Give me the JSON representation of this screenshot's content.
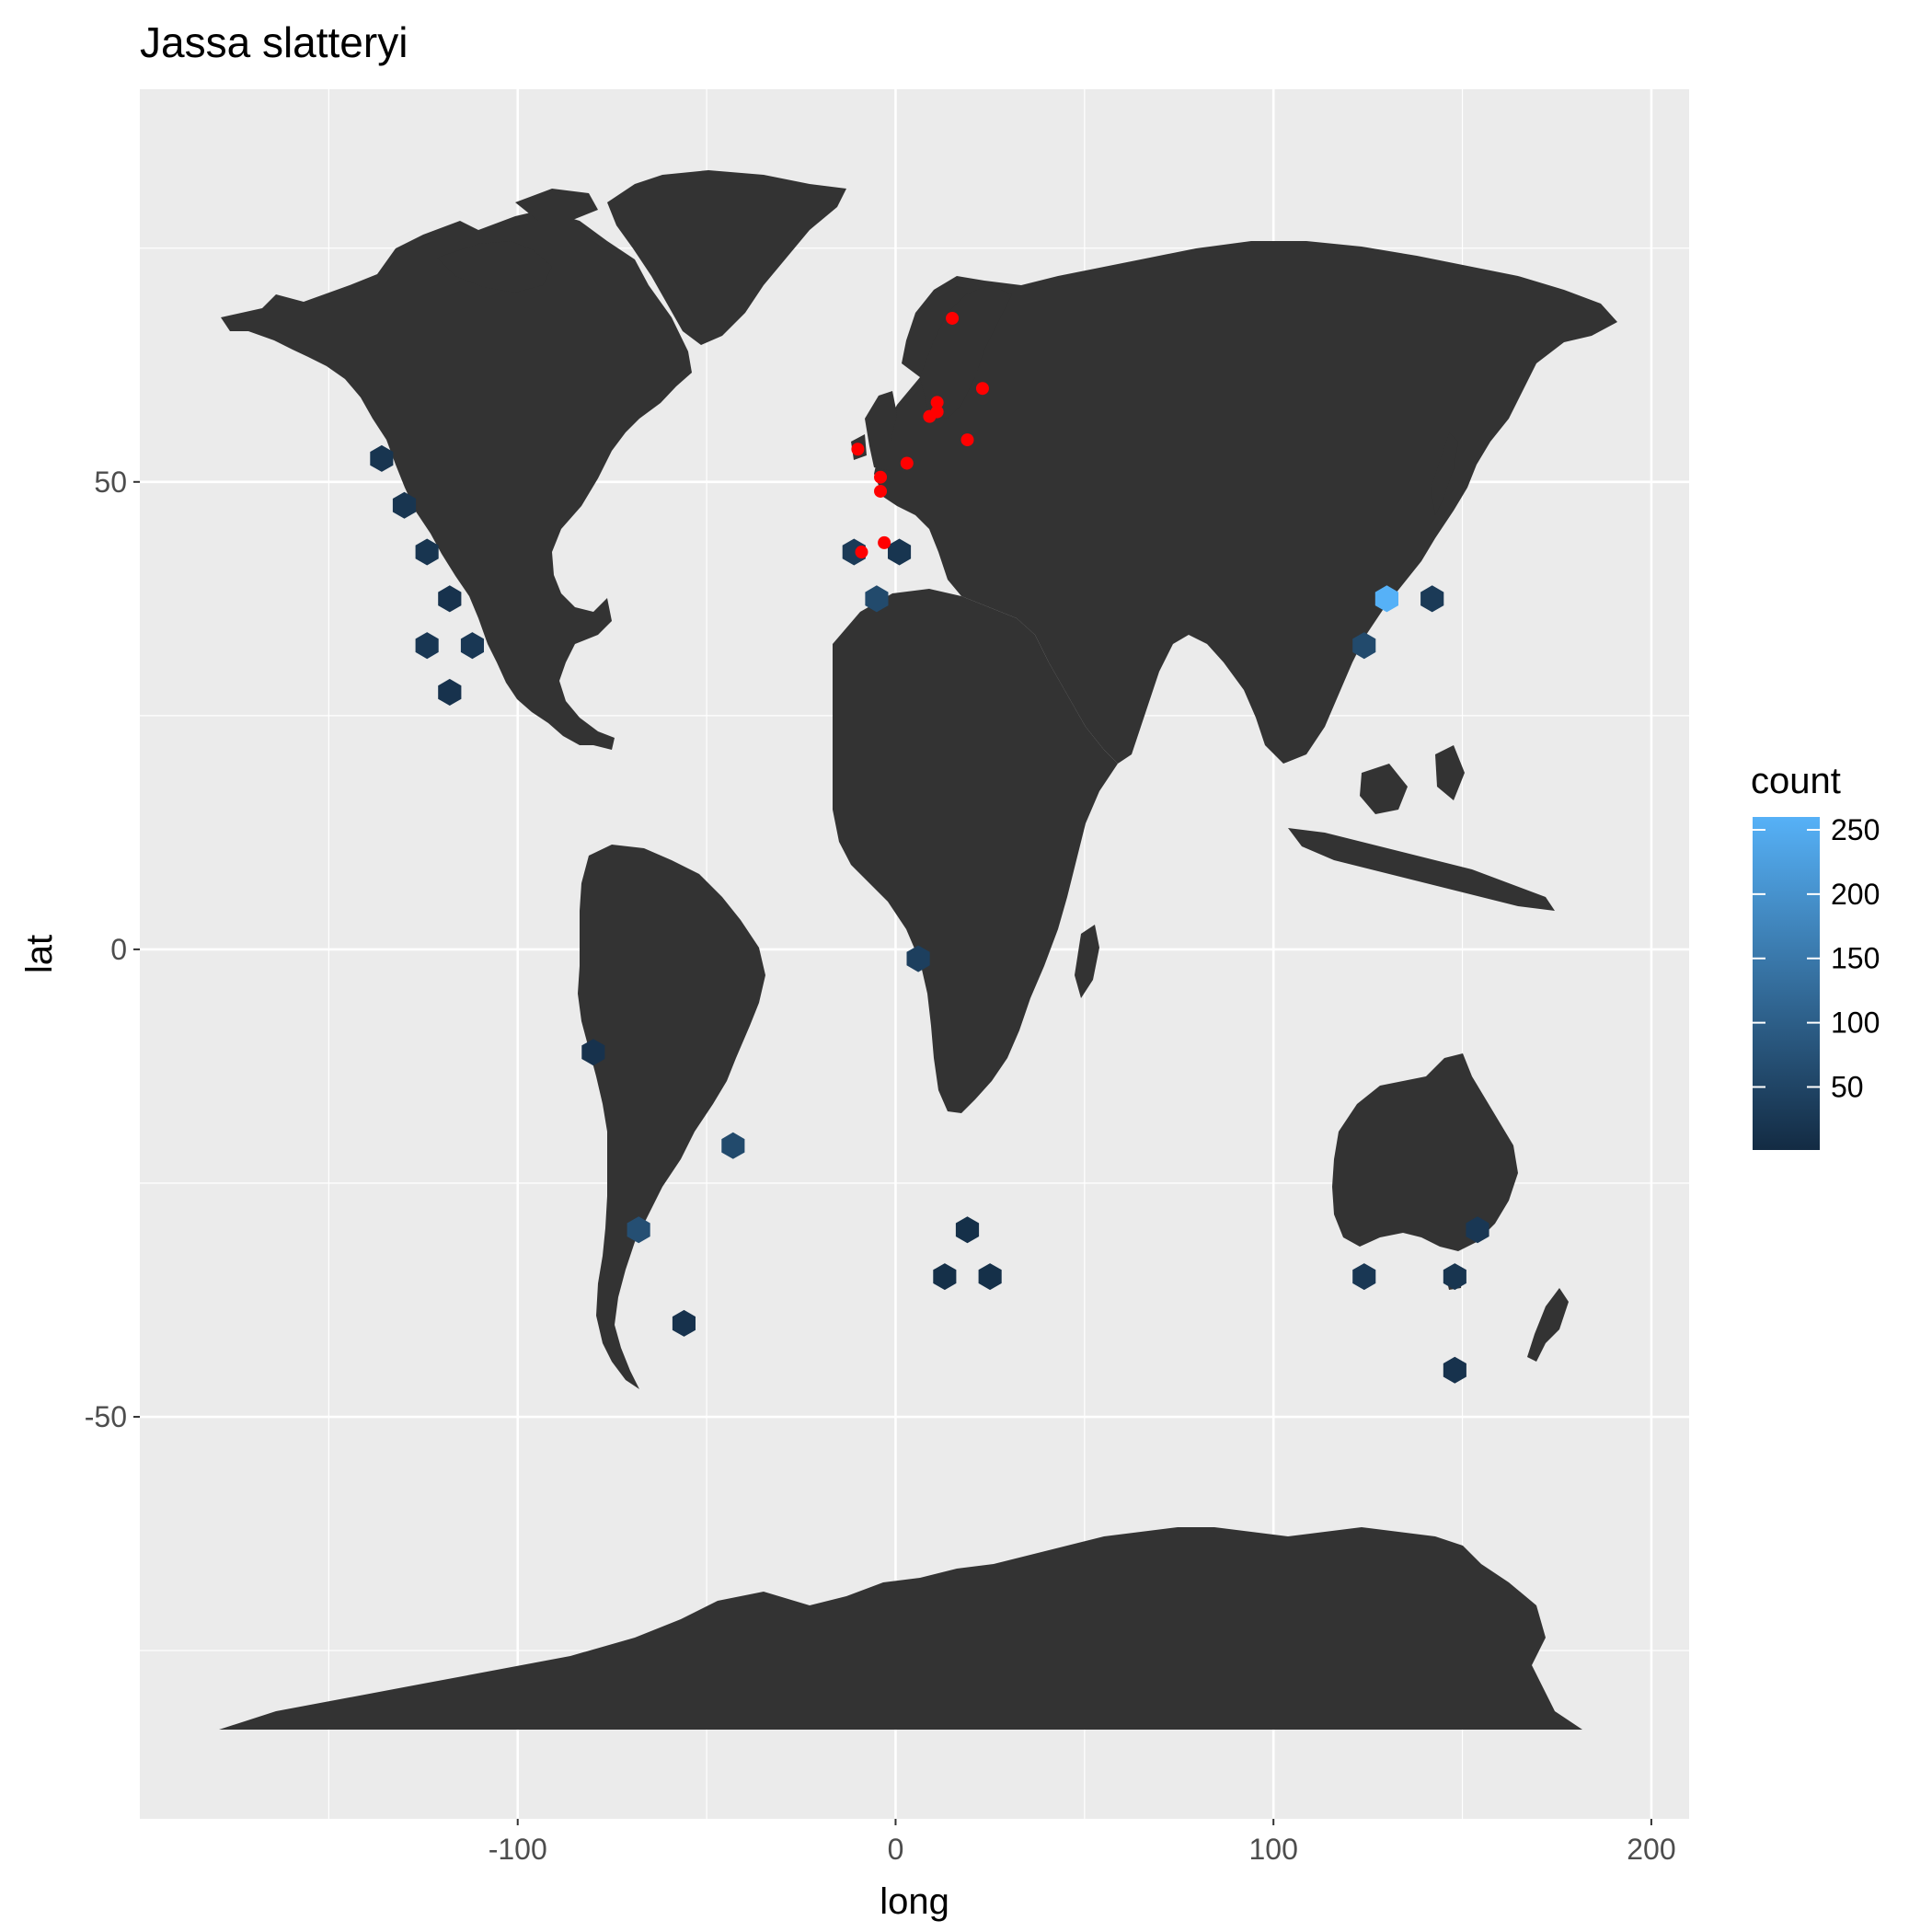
{
  "chart_data": {
    "type": "map-hexbin",
    "title": "Jassa slatteryi",
    "xlabel": "long",
    "ylabel": "lat",
    "xlim": [
      -200,
      210
    ],
    "ylim": [
      -93,
      92
    ],
    "x_ticks": [
      -100,
      0,
      100,
      200
    ],
    "x_tick_labels": [
      "-100",
      "0",
      "100",
      "200"
    ],
    "y_ticks": [
      -50,
      0,
      50
    ],
    "y_tick_labels": [
      "-50",
      "0",
      "50"
    ],
    "grid": true,
    "legend": {
      "title": "count",
      "position": "right",
      "min": 1,
      "max": 260,
      "breaks": [
        50,
        100,
        150,
        200,
        250
      ],
      "break_labels": [
        "50",
        "100",
        "150",
        "200",
        "250"
      ],
      "low_color": "#132b43",
      "high_color": "#56b1f7"
    },
    "colors": {
      "panel_background": "#ebebeb",
      "grid_major": "#ffffff",
      "land": "#333333",
      "points": "#ff0000"
    },
    "hexbins": [
      {
        "long": -136,
        "lat": 52.5,
        "count": 20
      },
      {
        "long": -130,
        "lat": 47.5,
        "count": 20
      },
      {
        "long": -124,
        "lat": 42.5,
        "count": 20
      },
      {
        "long": -118,
        "lat": 37.5,
        "count": 15
      },
      {
        "long": -124,
        "lat": 32.5,
        "count": 25
      },
      {
        "long": -112,
        "lat": 32.5,
        "count": 25
      },
      {
        "long": -118,
        "lat": 27.5,
        "count": 15
      },
      {
        "long": -11,
        "lat": 42.5,
        "count": 30
      },
      {
        "long": 1,
        "lat": 42.5,
        "count": 20
      },
      {
        "long": -5,
        "lat": 37.5,
        "count": 60
      },
      {
        "long": 130,
        "lat": 37.5,
        "count": 260
      },
      {
        "long": 142,
        "lat": 37.5,
        "count": 30
      },
      {
        "long": 124,
        "lat": 32.5,
        "count": 60
      },
      {
        "long": 6,
        "lat": -1,
        "count": 40
      },
      {
        "long": -80,
        "lat": -11,
        "count": 15
      },
      {
        "long": -43,
        "lat": -21,
        "count": 60
      },
      {
        "long": -68,
        "lat": -30,
        "count": 70
      },
      {
        "long": -56,
        "lat": -40,
        "count": 15
      },
      {
        "long": 19,
        "lat": -30,
        "count": 10
      },
      {
        "long": 13,
        "lat": -35,
        "count": 10
      },
      {
        "long": 25,
        "lat": -35,
        "count": 10
      },
      {
        "long": 154,
        "lat": -30,
        "count": 25
      },
      {
        "long": 124,
        "lat": -35,
        "count": 25
      },
      {
        "long": 148,
        "lat": -35,
        "count": 20
      },
      {
        "long": 148,
        "lat": -45,
        "count": 15
      }
    ],
    "points": [
      {
        "long": 15,
        "lat": 67.5
      },
      {
        "long": 23,
        "lat": 60
      },
      {
        "long": 11,
        "lat": 58.5
      },
      {
        "long": 11,
        "lat": 57.5
      },
      {
        "long": 9,
        "lat": 57
      },
      {
        "long": 19,
        "lat": 54.5
      },
      {
        "long": -10,
        "lat": 53.5
      },
      {
        "long": 3,
        "lat": 52
      },
      {
        "long": -4,
        "lat": 50.5
      },
      {
        "long": -4,
        "lat": 49
      },
      {
        "long": -3,
        "lat": 43.5
      },
      {
        "long": -9,
        "lat": 42.5
      }
    ]
  }
}
